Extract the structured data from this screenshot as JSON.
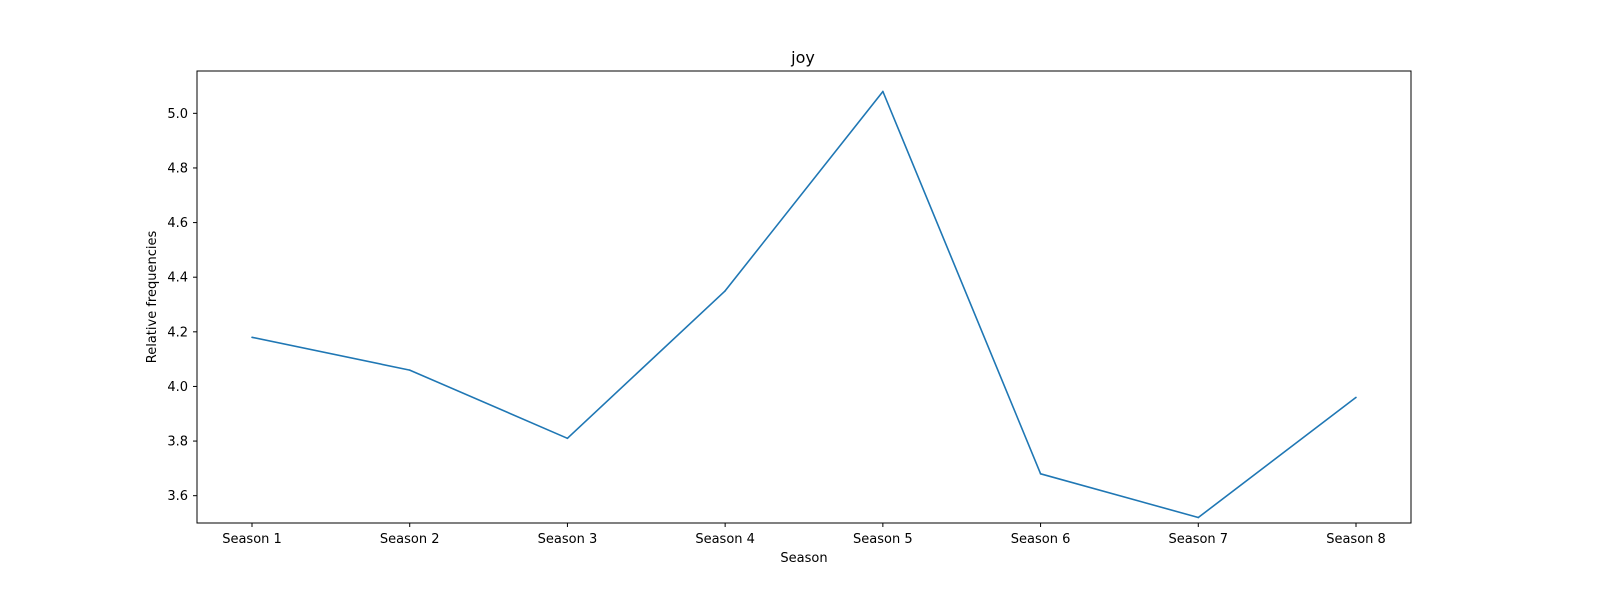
{
  "chart_data": {
    "type": "line",
    "title": "joy",
    "xlabel": "Season",
    "ylabel": "Relative frequencies",
    "categories": [
      "Season 1",
      "Season 2",
      "Season 3",
      "Season 4",
      "Season 5",
      "Season 6",
      "Season 7",
      "Season 8"
    ],
    "series": [
      {
        "values": [
          4.18,
          4.06,
          3.81,
          4.35,
          5.08,
          3.68,
          3.52,
          3.96
        ],
        "color": "#1f77b4"
      }
    ],
    "ylim": [
      3.5,
      5.155
    ],
    "yticks": [
      3.6,
      3.8,
      4.0,
      4.2,
      4.4,
      4.6,
      4.8,
      5.0
    ],
    "ytick_labels": [
      "3.6",
      "3.8",
      "4.0",
      "4.2",
      "4.4",
      "4.6",
      "4.8",
      "5.0"
    ],
    "grid": false,
    "legend": "none"
  }
}
